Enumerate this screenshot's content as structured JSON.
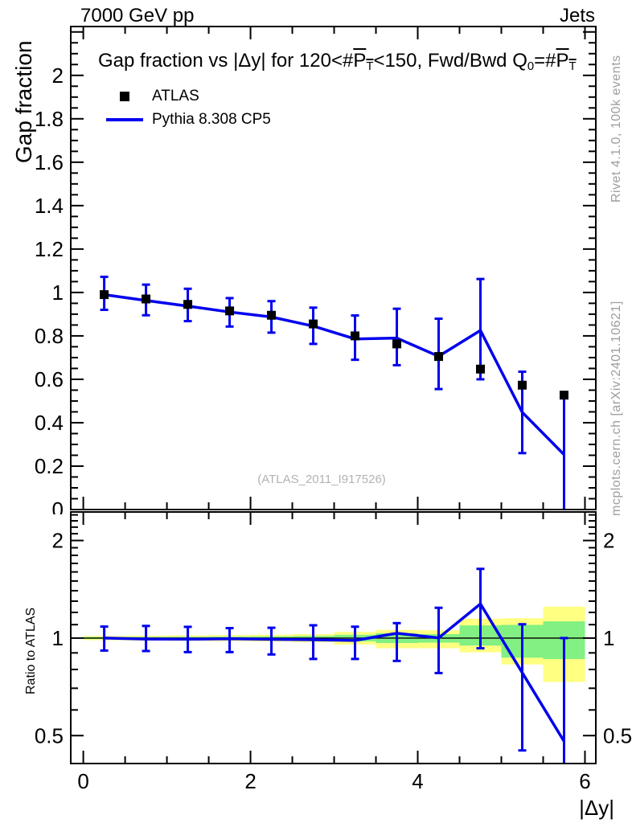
{
  "header": {
    "left": "7000 GeV pp",
    "right": "Jets"
  },
  "side_text": {
    "top_right": "Rivet 4.1.0, 100k events",
    "bottom_right": "mcplots.cern.ch [arXiv:2401.10621]"
  },
  "watermark": "(ATLAS_2011_I917526)",
  "title": {
    "parts": [
      {
        "text": "Gap fraction vs |Δy| for 120<#"
      },
      {
        "text": "P",
        "sub": "T",
        "overline": true
      },
      {
        "text": "<150, Fwd/Bwd Q",
        "sub": "0"
      },
      {
        "text": "=#"
      },
      {
        "text": "P",
        "sub": "T",
        "overline": true
      }
    ]
  },
  "legend": {
    "entries": [
      {
        "label": "ATLAS",
        "marker": "square",
        "color": "#000000"
      },
      {
        "label": "Pythia 8.308 CP5",
        "marker": "line",
        "color": "#0000ee"
      }
    ]
  },
  "colors": {
    "mc": "#0000ee",
    "data": "#000000",
    "band_outer": "#ffff82",
    "band_inner": "#82f082",
    "frame": "#000000",
    "muted": "#9e9e9e",
    "watermark": "#b3b3b3"
  },
  "chart_data": [
    {
      "type": "line",
      "panel": "main",
      "title": "Gap fraction vs |Δy| for 120<#PT<150, Fwd/Bwd Q0=#PT",
      "xlabel": "|Δy|",
      "ylabel": "Gap fraction",
      "xlim": [
        -0.15,
        6.13
      ],
      "ylim": [
        0,
        2.225
      ],
      "xticks": {
        "major": [
          0,
          2,
          4,
          6
        ],
        "labels": [
          "0",
          "2",
          "4",
          "6"
        ],
        "minor_step": 0.5
      },
      "yticks": {
        "major": [
          0,
          0.2,
          0.4,
          0.6,
          0.8,
          1,
          1.2,
          1.4,
          1.6,
          1.8,
          2,
          2.2
        ],
        "labels": [
          "0",
          "0.2",
          "0.4",
          "0.6",
          "0.8",
          "1",
          "1.2",
          "1.4",
          "1.6",
          "1.8",
          "2",
          ""
        ],
        "minor_step": 0.05
      },
      "x": [
        0.25,
        0.75,
        1.25,
        1.75,
        2.25,
        2.75,
        3.25,
        3.75,
        4.25,
        4.75,
        5.25,
        5.75
      ],
      "series": [
        {
          "name": "ATLAS",
          "type": "scatter",
          "marker": "square",
          "color": "#000000",
          "values": [
            0.99,
            0.97,
            0.945,
            0.915,
            0.895,
            0.855,
            0.8,
            0.763,
            0.705,
            0.647,
            0.573,
            0.527
          ]
        },
        {
          "name": "Pythia 8.308 CP5",
          "type": "line",
          "color": "#0000ee",
          "values": [
            0.99,
            0.963,
            0.937,
            0.91,
            0.887,
            0.845,
            0.786,
            0.79,
            0.706,
            0.825,
            0.448,
            0.253
          ],
          "err_lo": [
            0.92,
            0.895,
            0.868,
            0.843,
            0.815,
            0.763,
            0.69,
            0.665,
            0.555,
            0.6,
            0.26,
            0.0
          ],
          "err_hi": [
            1.072,
            1.036,
            1.017,
            0.974,
            0.96,
            0.93,
            0.894,
            0.925,
            0.879,
            1.062,
            0.635,
            0.517
          ]
        }
      ]
    },
    {
      "type": "ratio",
      "panel": "ratio",
      "ylabel": "Ratio to ATLAS",
      "xlim": [
        -0.15,
        6.13
      ],
      "ylim": [
        0.41,
        2.45
      ],
      "yscale": "log",
      "xticks": {
        "major": [
          0,
          2,
          4,
          6
        ],
        "labels": [
          "0",
          "2",
          "4",
          "6"
        ],
        "minor_step": 0.5
      },
      "yticks": {
        "major": [
          0.5,
          1,
          2
        ],
        "labels": [
          "0.5",
          "1",
          "2"
        ],
        "minor": [
          0.6,
          0.7,
          0.8,
          0.9,
          1.1,
          1.2,
          1.3,
          1.4,
          1.5,
          1.6,
          1.7,
          1.8,
          1.9,
          2.1,
          2.2,
          2.3,
          2.4
        ]
      },
      "x": [
        0.25,
        0.75,
        1.25,
        1.75,
        2.25,
        2.75,
        3.25,
        3.75,
        4.25,
        4.75,
        5.25,
        5.75
      ],
      "values": [
        1.0,
        0.993,
        0.992,
        0.995,
        0.991,
        0.988,
        0.983,
        1.035,
        1.001,
        1.275,
        0.782,
        0.48
      ],
      "err_lo": [
        0.915,
        0.912,
        0.905,
        0.905,
        0.89,
        0.862,
        0.862,
        0.85,
        0.78,
        0.93,
        0.45,
        0.4
      ],
      "err_hi": [
        1.085,
        1.09,
        1.083,
        1.073,
        1.076,
        1.095,
        1.084,
        1.112,
        1.24,
        1.635,
        1.103,
        1.0
      ],
      "bands": [
        {
          "x0": 0.0,
          "x1": 0.5,
          "outer": [
            0.985,
            1.015
          ],
          "inner": [
            0.993,
            1.007
          ]
        },
        {
          "x0": 0.5,
          "x1": 1.0,
          "outer": [
            0.983,
            1.017
          ],
          "inner": [
            0.992,
            1.008
          ]
        },
        {
          "x0": 1.0,
          "x1": 1.5,
          "outer": [
            0.981,
            1.019
          ],
          "inner": [
            0.991,
            1.009
          ]
        },
        {
          "x0": 1.5,
          "x1": 2.0,
          "outer": [
            0.979,
            1.021
          ],
          "inner": [
            0.99,
            1.01
          ]
        },
        {
          "x0": 2.0,
          "x1": 2.5,
          "outer": [
            0.976,
            1.024
          ],
          "inner": [
            0.988,
            1.012
          ]
        },
        {
          "x0": 2.5,
          "x1": 3.0,
          "outer": [
            0.971,
            1.029
          ],
          "inner": [
            0.985,
            1.015
          ]
        },
        {
          "x0": 3.0,
          "x1": 3.5,
          "outer": [
            0.955,
            1.045
          ],
          "inner": [
            0.977,
            1.023
          ]
        },
        {
          "x0": 3.5,
          "x1": 4.0,
          "outer": [
            0.93,
            1.06
          ],
          "inner": [
            0.965,
            1.035
          ]
        },
        {
          "x0": 4.0,
          "x1": 4.5,
          "outer": [
            0.93,
            1.057
          ],
          "inner": [
            0.968,
            1.028
          ]
        },
        {
          "x0": 4.5,
          "x1": 5.0,
          "outer": [
            0.904,
            1.147
          ],
          "inner": [
            0.948,
            1.094
          ]
        },
        {
          "x0": 5.0,
          "x1": 5.5,
          "outer": [
            0.829,
            1.151
          ],
          "inner": [
            0.87,
            1.098
          ]
        },
        {
          "x0": 5.5,
          "x1": 6.0,
          "outer": [
            0.732,
            1.25
          ],
          "inner": [
            0.861,
            1.126
          ]
        }
      ]
    }
  ]
}
